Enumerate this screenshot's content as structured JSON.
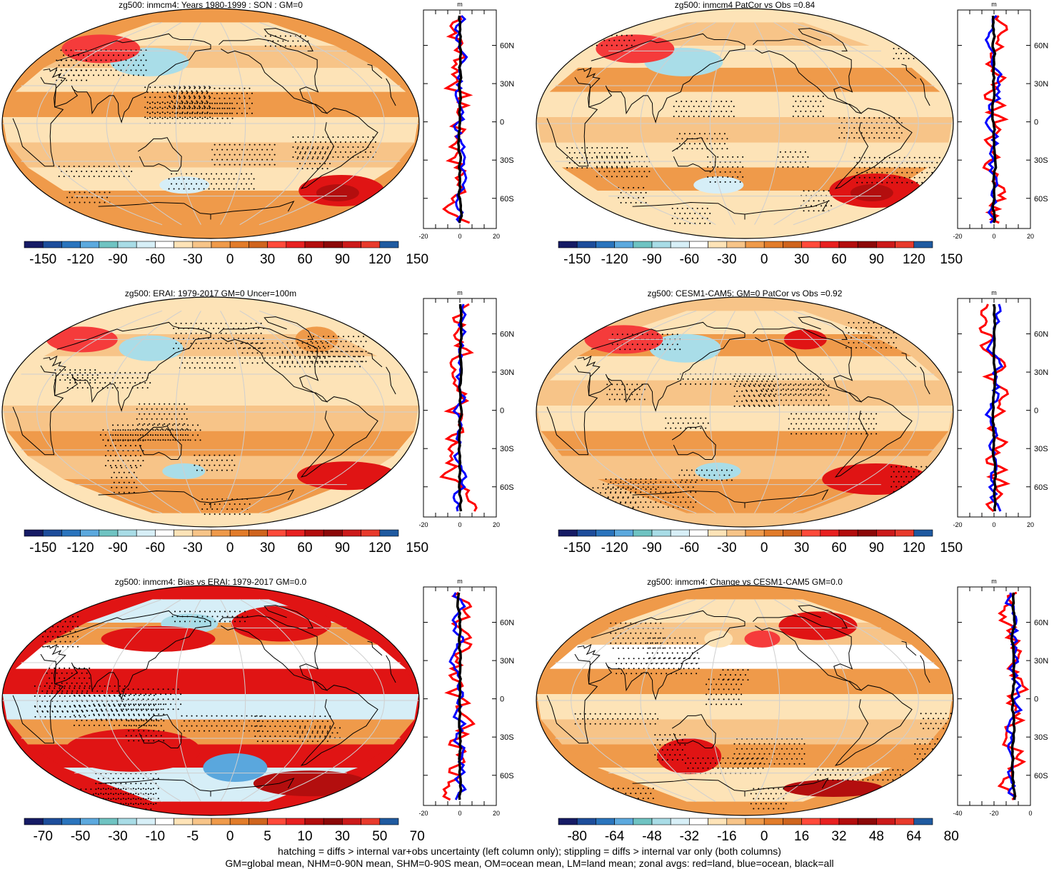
{
  "panels": [
    {
      "title": "zg500: inmcm4: Years 1980-1999 : SON : GM=0",
      "colorbar": "full"
    },
    {
      "title": "zg500: inmcm4 PatCor vs Obs =0.84",
      "colorbar": "full"
    },
    {
      "title": "zg500: ERAI: 1979-2017 GM=0 Uncer=100m",
      "colorbar": "full"
    },
    {
      "title": "zg500: CESM1-CAM5: GM=0 PatCor vs Obs =0.92",
      "colorbar": "full"
    },
    {
      "title": "zg500: inmcm4: Bias vs ERAI: 1979-2017  GM=0.0",
      "colorbar": "bias"
    },
    {
      "title": "zg500: inmcm4: Change vs CESM1-CAM5 GM=0.0",
      "colorbar": "change"
    }
  ],
  "colorbars": {
    "full": [
      "-150",
      "-120",
      "-90",
      "-60",
      "-30",
      "0",
      "30",
      "60",
      "90",
      "120",
      "150"
    ],
    "bias": [
      "-70",
      "-50",
      "-30",
      "-10",
      "-5",
      "0",
      "5",
      "10",
      "30",
      "50",
      "70"
    ],
    "change": [
      "-80",
      "-64",
      "-48",
      "-32",
      "-16",
      "0",
      "16",
      "32",
      "48",
      "64",
      "80"
    ]
  },
  "palette": [
    "#1a1f6e",
    "#1f4f9e",
    "#2f79c0",
    "#5aa7dd",
    "#74c6c4",
    "#a9dde8",
    "#d6eef7",
    "#ffffff",
    "#fde3b7",
    "#f7c488",
    "#ef9a4a",
    "#e07a28",
    "#d0621c",
    "#f53b3b",
    "#e01414",
    "#b30e0e",
    "#8a0a0a",
    "#c41616",
    "#e23a2a",
    "#ff3030",
    "#1e59a0"
  ],
  "zonal": {
    "unit": "m",
    "lat_labels": [
      "60N",
      "30N",
      "0",
      "30S",
      "60S"
    ],
    "xticks_default": [
      "-20",
      "0",
      "20"
    ],
    "xticks_change": [
      "-40",
      "-20",
      "0"
    ],
    "legend_colors": {
      "land": "#ff0000",
      "ocean": "#0000ff",
      "all": "#000000"
    }
  },
  "footer": {
    "line1": "hatching = diffs > internal var+obs uncertainty (left column only); stippling = diffs > internal var only (both columns)",
    "line2": "GM=global mean, NHM=0-90N mean, SHM=0-90S mean, OM=ocean mean, LM=land mean; zonal avgs: red=land, blue=ocean, black=all"
  }
}
